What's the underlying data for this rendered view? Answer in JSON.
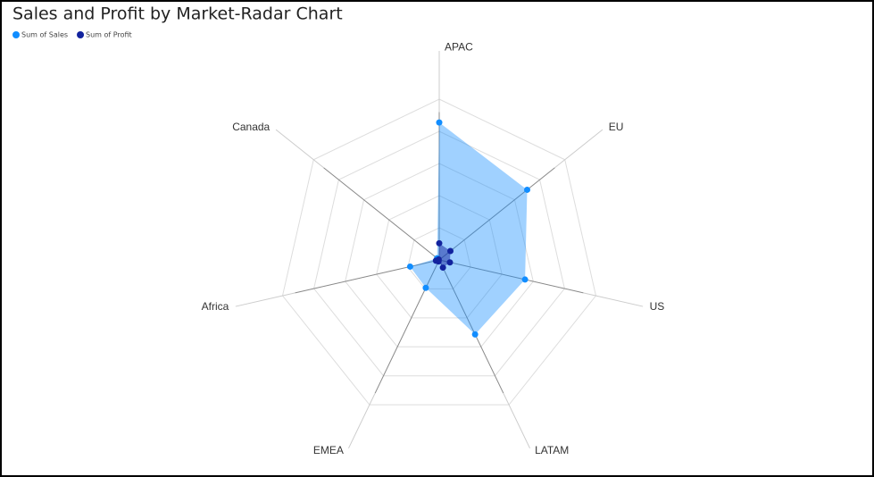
{
  "chart_data": {
    "type": "radar",
    "title": "Sales and Profit by Market-Radar Chart",
    "categories": [
      "APAC",
      "EU",
      "US",
      "LATAM",
      "EMEA",
      "Africa",
      "Canada"
    ],
    "series": [
      {
        "name": "Sum of Sales",
        "color": "#118DFF",
        "values": [
          3590000,
          2940000,
          2300000,
          2160000,
          810000,
          780000,
          70000
        ]
      },
      {
        "name": "Sum of Profit",
        "color": "#12239E",
        "values": [
          436000,
          373000,
          286000,
          222000,
          44000,
          89000,
          18000
        ]
      }
    ],
    "ylim": [
      0,
      4200000
    ],
    "legend": "top-left"
  }
}
